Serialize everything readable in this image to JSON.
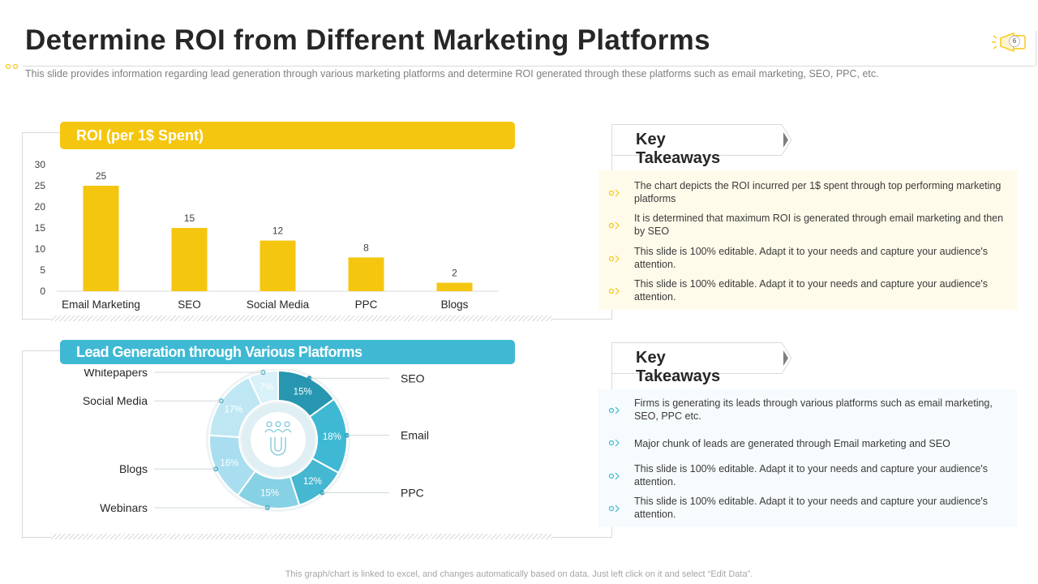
{
  "title": "Determine ROI from Different Marketing Platforms",
  "subtitle": "This slide provides  information  regarding  lead generation  through  various  marketing platforms  and determine  ROI generated  through these platforms such as email marketing, SEO, PPC, etc.",
  "page_number": "6",
  "footer": "This graph/chart is linked to excel,  and changes automatically based on data. Just left click on it and select “Edit Data”.",
  "colors": {
    "yellow": "#f5c60f",
    "blue": "#3fb9d3",
    "dark_teal": "#2796b0"
  },
  "top_section": {
    "banner": "ROI (per 1$ Spent)",
    "takeaways_label": "Key Takeaways",
    "takeaways": [
      "The chart depicts the ROI incurred per 1$ spent through top performing marketing platforms",
      "It is determined that maximum ROI is generated through email marketing and then by SEO",
      "This slide is 100% editable. Adapt it to your needs and capture your audience's attention.",
      "This slide is 100% editable. Adapt it to your needs and capture your audience's attention."
    ]
  },
  "bottom_section": {
    "banner": "Lead Generation through Various  Platforms",
    "takeaways_label": "Key Takeaways",
    "takeaways": [
      "Firms is generating  its leads through various  platforms such as email marketing, SEO, PPC etc.",
      "Major chunk of leads are generated through Email marketing and SEO",
      "This slide is 100% editable. Adapt it to your needs and capture your audience's attention.",
      "This slide is 100% editable. Adapt it to your needs and capture your audience's attention."
    ]
  },
  "chart_data": [
    {
      "type": "bar",
      "title": "ROI (per 1$ Spent)",
      "categories": [
        "Email Marketing",
        "SEO",
        "Social Media",
        "PPC",
        "Blogs"
      ],
      "values": [
        25,
        15,
        12,
        8,
        2
      ],
      "data_labels": [
        "25",
        "15",
        "12",
        "8",
        "2"
      ],
      "yticks": [
        "0",
        "5",
        "10",
        "15",
        "20",
        "25",
        "30"
      ],
      "ylim": [
        0,
        30
      ],
      "grid": false,
      "color": "#f5c60f"
    },
    {
      "type": "pie",
      "style": "donut",
      "title": "Lead Generation through Various  Platforms",
      "categories": [
        "SEO",
        "Email",
        "PPC",
        "Webinars",
        "Blogs",
        "Social Media",
        "Whitepapers"
      ],
      "values": [
        15,
        18,
        12,
        15,
        16,
        17,
        7
      ],
      "data_labels": [
        "15%",
        "18%",
        "12%",
        "15%",
        "16%",
        "17%",
        "7%"
      ],
      "colors": [
        "#2796b0",
        "#3fb9d3",
        "#45b7d1",
        "#86d1e4",
        "#a9def0",
        "#bfe7f3",
        "#d9f1f8"
      ],
      "icon": "magnet-people-icon"
    }
  ]
}
